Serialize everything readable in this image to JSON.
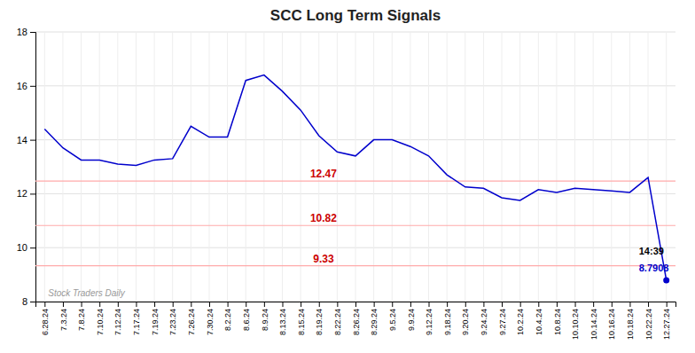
{
  "chart_data": {
    "type": "line",
    "title": "SCC Long Term Signals",
    "categories": [
      "6.28.24",
      "7.3.24",
      "7.8.24",
      "7.10.24",
      "7.12.24",
      "7.17.24",
      "7.19.24",
      "7.23.24",
      "7.26.24",
      "7.30.24",
      "8.2.24",
      "8.6.24",
      "8.9.24",
      "8.13.24",
      "8.15.24",
      "8.19.24",
      "8.22.24",
      "8.26.24",
      "8.29.24",
      "9.5.24",
      "9.9.24",
      "9.12.24",
      "9.18.24",
      "9.20.24",
      "9.24.24",
      "9.27.24",
      "10.2.24",
      "10.4.24",
      "10.8.24",
      "10.10.24",
      "10.14.24",
      "10.16.24",
      "10.18.24",
      "10.22.24",
      "12.27.24"
    ],
    "values": [
      14.4,
      13.7,
      13.25,
      13.25,
      13.1,
      13.05,
      13.25,
      13.3,
      14.5,
      14.1,
      14.1,
      16.2,
      16.4,
      15.8,
      15.1,
      14.15,
      13.55,
      13.4,
      14.0,
      14.0,
      13.75,
      13.4,
      12.7,
      12.25,
      12.2,
      11.85,
      11.75,
      12.15,
      12.05,
      12.2,
      12.15,
      12.1,
      12.05,
      12.6,
      8.7908
    ],
    "color": "#0000cc",
    "ylim": [
      8,
      18
    ],
    "yticks": [
      8,
      10,
      12,
      14,
      16,
      18
    ],
    "grid": true,
    "annotations": [
      {
        "y": 12.47,
        "label": "12.47",
        "color": "#cc0000"
      },
      {
        "y": 10.82,
        "label": "10.82",
        "color": "#cc0000"
      },
      {
        "y": 9.33,
        "label": "9.33",
        "color": "#cc0000"
      },
      {
        "label": "14:39"
      },
      {
        "label": "8.7908",
        "color": "#0000cc"
      },
      {
        "label": "Stock Traders Daily"
      }
    ]
  }
}
